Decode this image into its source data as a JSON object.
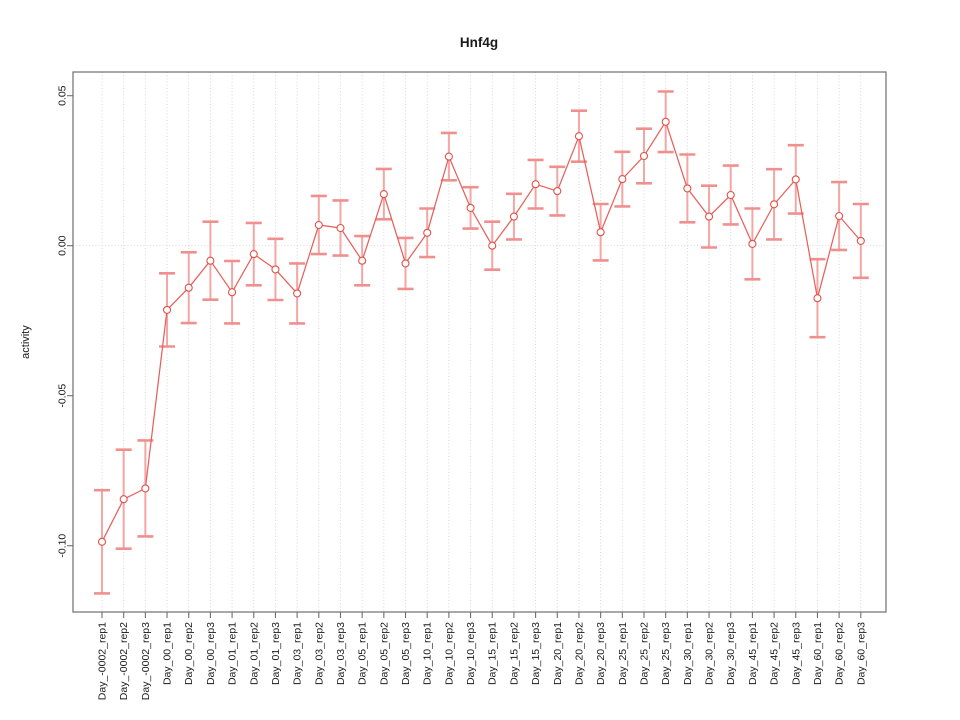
{
  "title": "Hnf4g",
  "axes": {
    "ylabel": "activity",
    "xlabel": "",
    "y_tick_values": [
      0.05,
      0.0,
      -0.05,
      -0.1
    ],
    "y_tick_labels": [
      "0.05",
      "0.00",
      "-0.05",
      "-0.10"
    ]
  },
  "chart_data": {
    "type": "line",
    "title": "Hnf4g",
    "xlabel": "",
    "ylabel": "activity",
    "ylim": [
      -0.122,
      0.058
    ],
    "grid": "vertical dotted gridline at every category; horizontal dotted line at y=0",
    "legend": "none",
    "point_style": "open circle with error bars",
    "categories": [
      "Day_-0002_rep1",
      "Day_-0002_rep2",
      "Day_-0002_rep3",
      "Day_00_rep1",
      "Day_00_rep2",
      "Day_00_rep3",
      "Day_01_rep1",
      "Day_01_rep2",
      "Day_01_rep3",
      "Day_03_rep1",
      "Day_03_rep2",
      "Day_03_rep3",
      "Day_05_rep1",
      "Day_05_rep2",
      "Day_05_rep3",
      "Day_10_rep1",
      "Day_10_rep2",
      "Day_10_rep3",
      "Day_15_rep1",
      "Day_15_rep2",
      "Day_15_rep3",
      "Day_20_rep1",
      "Day_20_rep2",
      "Day_20_rep3",
      "Day_25_rep1",
      "Day_25_rep2",
      "Day_25_rep3",
      "Day_30_rep1",
      "Day_30_rep2",
      "Day_30_rep3",
      "Day_45_rep1",
      "Day_45_rep2",
      "Day_45_rep3",
      "Day_60_rep1",
      "Day_60_rep2",
      "Day_60_rep3"
    ],
    "series": [
      {
        "name": "activity",
        "values": [
          -0.0987,
          -0.0845,
          -0.0809,
          -0.0214,
          -0.014,
          -0.005,
          -0.0155,
          -0.0028,
          -0.0079,
          -0.0159,
          0.0069,
          0.0059,
          -0.005,
          0.0172,
          -0.0059,
          0.0043,
          0.0297,
          0.0126,
          0.0,
          0.0097,
          0.0205,
          0.0182,
          0.0365,
          0.0045,
          0.0222,
          0.0299,
          0.0413,
          0.0191,
          0.0097,
          0.0169,
          0.0006,
          0.0138,
          0.0221,
          -0.0175,
          0.0099,
          0.0016
        ],
        "errors": [
          0.0172,
          0.0165,
          0.016,
          0.0122,
          0.0118,
          0.013,
          0.0104,
          0.0104,
          0.0102,
          0.01,
          0.0097,
          0.0092,
          0.0082,
          0.0084,
          0.0085,
          0.0081,
          0.0079,
          0.0069,
          0.008,
          0.0076,
          0.0081,
          0.0081,
          0.0085,
          0.0094,
          0.0091,
          0.0091,
          0.0101,
          0.0113,
          0.0103,
          0.0098,
          0.0118,
          0.0117,
          0.0114,
          0.013,
          0.0113,
          0.0123
        ]
      }
    ],
    "colors": {
      "point": "#e2514b",
      "line": "#e8605a",
      "error_bar": "#f4a6a4",
      "error_cap": "#f0908e",
      "grid": "#d2d2d2",
      "axis": "#6e6e6e",
      "text": "#1a1a1a"
    }
  }
}
